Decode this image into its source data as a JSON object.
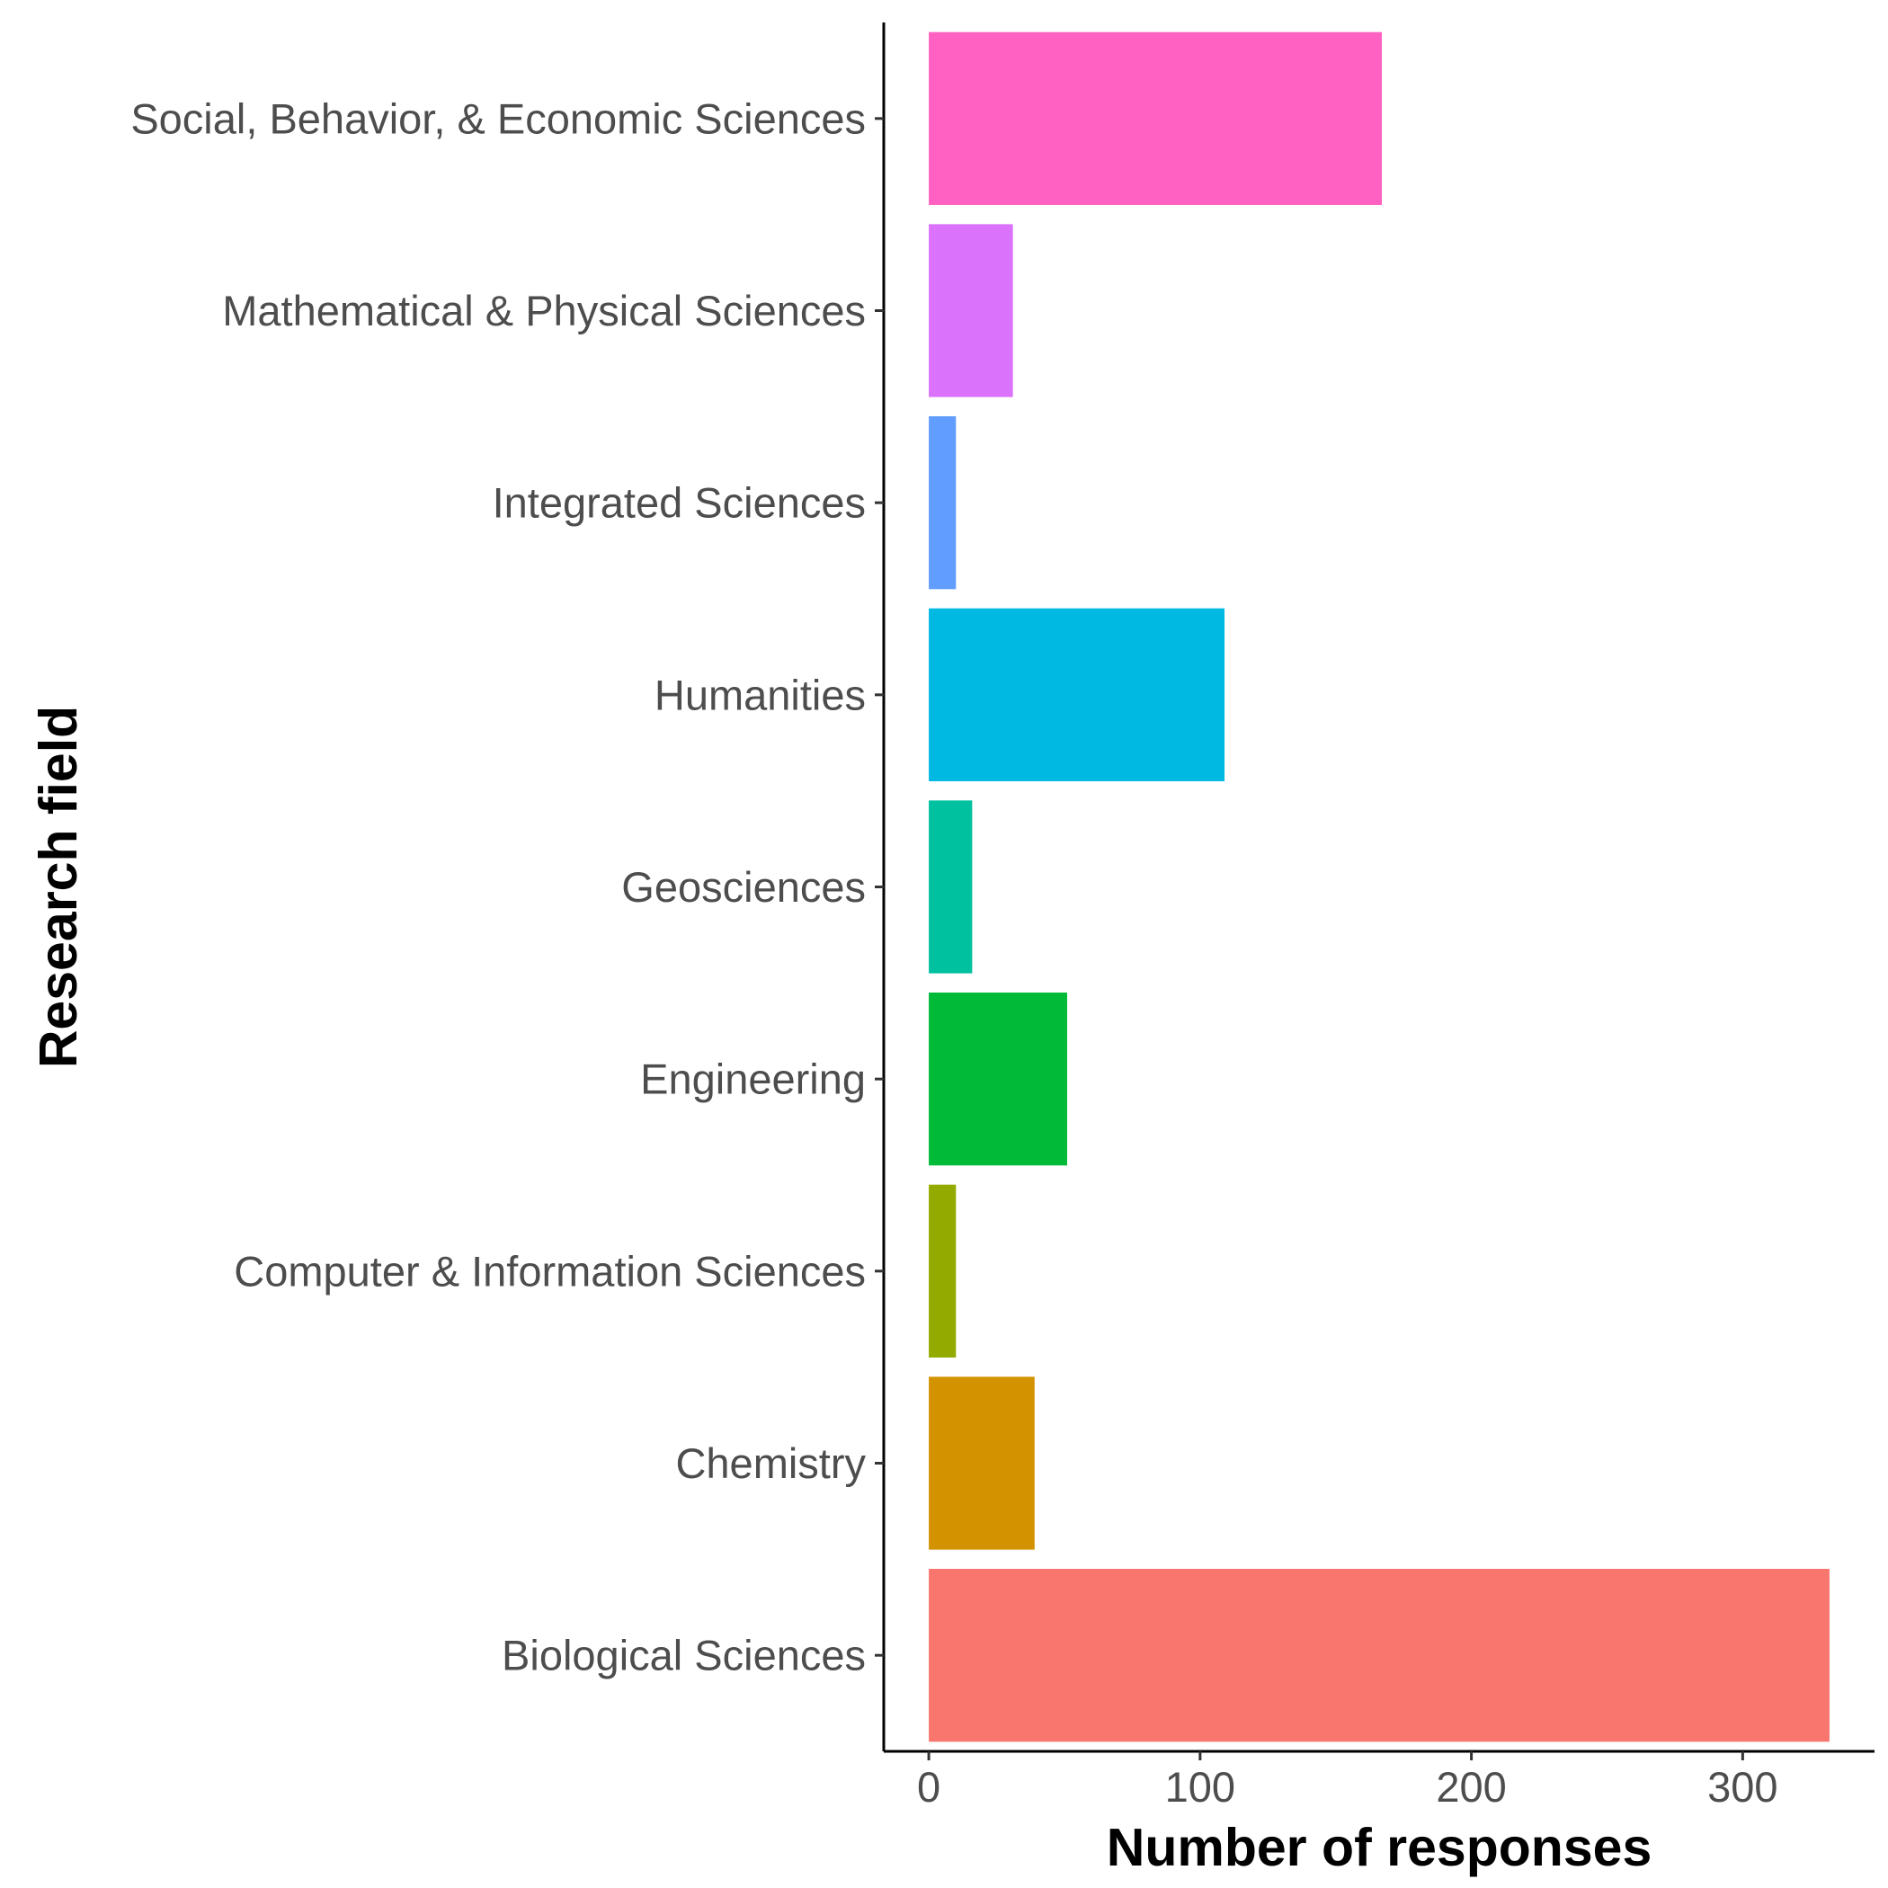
{
  "chart_data": {
    "type": "bar",
    "orientation": "horizontal",
    "xlabel": "Number of responses",
    "ylabel": "Research field",
    "categories": [
      "Biological Sciences",
      "Chemistry",
      "Computer & Information Sciences",
      "Engineering",
      "Geosciences",
      "Humanities",
      "Integrated Sciences",
      "Mathematical & Physical Sciences",
      "Social, Behavior, & Economic Sciences"
    ],
    "values": [
      332,
      39,
      10,
      51,
      16,
      109,
      10,
      31,
      167
    ],
    "colors": [
      "#F8766D",
      "#D39200",
      "#93AA00",
      "#00BA38",
      "#00C19F",
      "#00B9E3",
      "#619CFF",
      "#DB72FB",
      "#FF61C3"
    ],
    "x_ticks": [
      0,
      100,
      200,
      300
    ],
    "x_tick_labels": [
      "0",
      "100",
      "200",
      "300"
    ],
    "xlim": [
      -16.6,
      348.6
    ],
    "grid": false,
    "legend": "none"
  }
}
